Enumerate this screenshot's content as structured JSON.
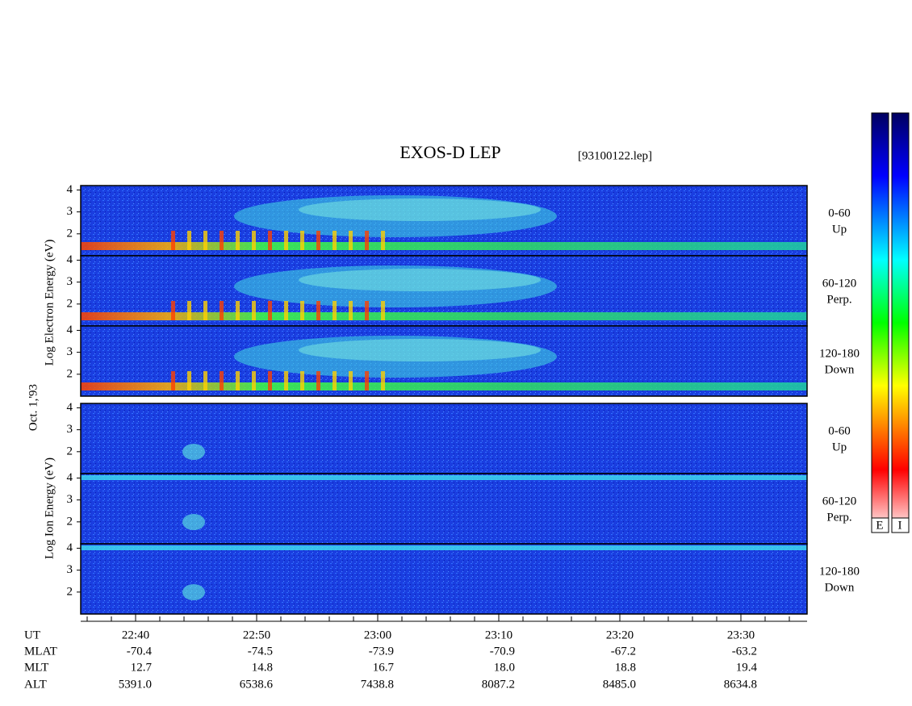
{
  "chart_data": {
    "type": "spectrogram",
    "title": "EXOS-D LEP",
    "subtitle": "[93100122.lep]",
    "date": "Oct. 1,'93",
    "group_labels": [
      "Log Electron Energy (eV)",
      "Log Ion Energy (eV)"
    ],
    "panels": [
      {
        "labels": [
          "0-60",
          "Up"
        ],
        "ylim": [
          1,
          4.2
        ],
        "yticks": [
          2,
          3,
          4
        ]
      },
      {
        "labels": [
          "60-120",
          "Perp."
        ],
        "ylim": [
          1,
          4.2
        ],
        "yticks": [
          2,
          3,
          4
        ]
      },
      {
        "labels": [
          "120-180",
          "Down"
        ],
        "ylim": [
          1,
          4.2
        ],
        "yticks": [
          2,
          3,
          4
        ]
      },
      {
        "labels": [
          "0-60",
          "Up"
        ],
        "ylim": [
          1,
          4.2
        ],
        "yticks": [
          2,
          3,
          4
        ]
      },
      {
        "labels": [
          "60-120",
          "Perp."
        ],
        "ylim": [
          1,
          4.2
        ],
        "yticks": [
          2,
          3,
          4
        ]
      },
      {
        "labels": [
          "120-180",
          "Down"
        ],
        "ylim": [
          1,
          4.2
        ],
        "yticks": [
          2,
          3,
          4
        ]
      }
    ],
    "xticks": [
      "22:40",
      "22:50",
      "23:00",
      "23:10",
      "23:20",
      "23:30"
    ],
    "rows": [
      {
        "name": "UT",
        "values": []
      },
      {
        "name": "MLAT",
        "values": [
          "-70.4",
          "-74.5",
          "-73.9",
          "-70.9",
          "-67.2",
          "-63.2"
        ]
      },
      {
        "name": "MLT",
        "values": [
          "12.7",
          "14.8",
          "16.7",
          "18.0",
          "18.8",
          "19.4"
        ]
      },
      {
        "name": "ALT",
        "values": [
          "5391.0",
          "6538.6",
          "7438.8",
          "8087.2",
          "8485.0",
          "8634.8"
        ]
      }
    ],
    "colorbar_labels": [
      "E",
      "I"
    ]
  }
}
